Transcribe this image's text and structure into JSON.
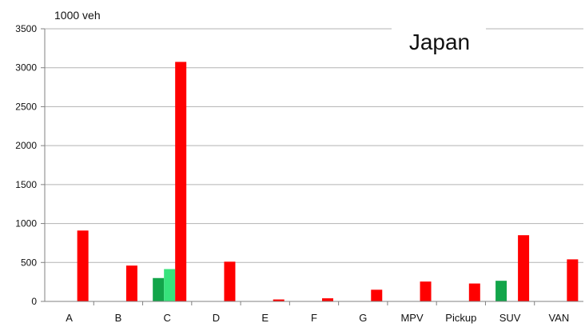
{
  "chart_data": {
    "type": "bar",
    "title": "Japan",
    "ylabel": "1000 veh",
    "xlabel": "",
    "ylim": [
      0,
      3500
    ],
    "yticks": [
      0,
      500,
      1000,
      1500,
      2000,
      2500,
      3000,
      3500
    ],
    "grid": true,
    "categories": [
      "A",
      "B",
      "C",
      "D",
      "E",
      "F",
      "G",
      "MPV",
      "Pickup",
      "SUV",
      "VAN"
    ],
    "series": [
      {
        "color": "#12A54A",
        "values": [
          0,
          0,
          300,
          0,
          0,
          0,
          0,
          0,
          0,
          265,
          0
        ]
      },
      {
        "color": "#37E37C",
        "values": [
          0,
          0,
          415,
          0,
          0,
          0,
          0,
          0,
          0,
          0,
          0
        ]
      },
      {
        "color": "#FF0000",
        "values": [
          910,
          460,
          3075,
          510,
          25,
          40,
          150,
          255,
          230,
          850,
          540
        ]
      }
    ],
    "colors": {
      "grid": "#B3B3B3",
      "axis": "#808080",
      "text": "#111111"
    }
  }
}
